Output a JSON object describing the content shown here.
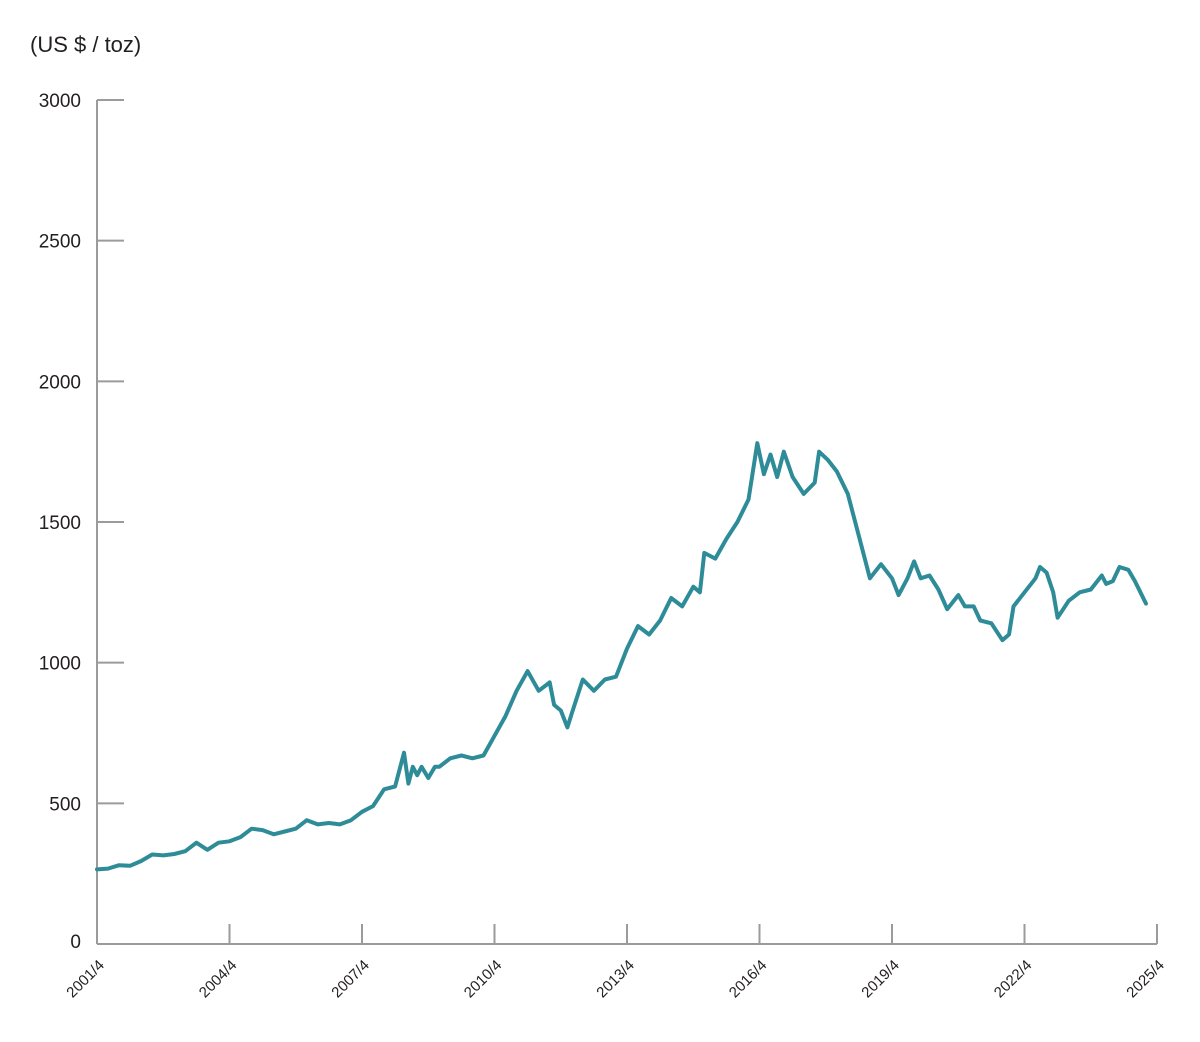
{
  "chart_data": {
    "type": "line",
    "title": "",
    "ylabel": "(US $ / toz)",
    "xlabel": "",
    "ylim": [
      0,
      3000
    ],
    "yticks": [
      0,
      500,
      1000,
      1500,
      2000,
      2500,
      3000
    ],
    "xtick_labels": [
      "2001/4",
      "2004/4",
      "2007/4",
      "2010/4",
      "2013/4",
      "2016/4",
      "2019/4",
      "2022/4",
      "2025/4"
    ],
    "xlim": [
      2001.25,
      2025.25
    ],
    "grid": false,
    "legend": "none",
    "color": "#2e8c99",
    "series": [
      {
        "points": [
          [
            2001.25,
            265
          ],
          [
            2001.5,
            268
          ],
          [
            2001.75,
            280
          ],
          [
            2002.0,
            278
          ],
          [
            2002.25,
            295
          ],
          [
            2002.5,
            318
          ],
          [
            2002.75,
            315
          ],
          [
            2003.0,
            320
          ],
          [
            2003.25,
            330
          ],
          [
            2003.5,
            360
          ],
          [
            2003.75,
            335
          ],
          [
            2004.0,
            360
          ],
          [
            2004.25,
            365
          ],
          [
            2004.5,
            380
          ],
          [
            2004.75,
            410
          ],
          [
            2005.0,
            405
          ],
          [
            2005.25,
            390
          ],
          [
            2005.5,
            400
          ],
          [
            2005.75,
            410
          ],
          [
            2006.0,
            440
          ],
          [
            2006.25,
            425
          ],
          [
            2006.5,
            430
          ],
          [
            2006.75,
            425
          ],
          [
            2007.0,
            440
          ],
          [
            2007.25,
            470
          ],
          [
            2007.5,
            490
          ],
          [
            2007.75,
            550
          ],
          [
            2008.0,
            560
          ],
          [
            2008.2,
            680
          ],
          [
            2008.3,
            570
          ],
          [
            2008.4,
            630
          ],
          [
            2008.5,
            600
          ],
          [
            2008.6,
            630
          ],
          [
            2008.75,
            590
          ],
          [
            2008.9,
            630
          ],
          [
            2009.0,
            630
          ],
          [
            2009.25,
            660
          ],
          [
            2009.5,
            670
          ],
          [
            2009.75,
            660
          ],
          [
            2010.0,
            670
          ],
          [
            2010.25,
            740
          ],
          [
            2010.5,
            810
          ],
          [
            2010.75,
            900
          ],
          [
            2011.0,
            970
          ],
          [
            2011.25,
            900
          ],
          [
            2011.5,
            930
          ],
          [
            2011.6,
            850
          ],
          [
            2011.75,
            830
          ],
          [
            2011.9,
            770
          ],
          [
            2012.0,
            820
          ],
          [
            2012.25,
            940
          ],
          [
            2012.5,
            900
          ],
          [
            2012.75,
            940
          ],
          [
            2013.0,
            950
          ],
          [
            2013.25,
            1050
          ],
          [
            2013.5,
            1130
          ],
          [
            2013.75,
            1100
          ],
          [
            2014.0,
            1150
          ],
          [
            2014.25,
            1230
          ],
          [
            2014.5,
            1200
          ],
          [
            2014.75,
            1270
          ],
          [
            2014.9,
            1250
          ],
          [
            2015.0,
            1390
          ],
          [
            2015.25,
            1370
          ],
          [
            2015.5,
            1440
          ],
          [
            2015.75,
            1500
          ],
          [
            2016.0,
            1580
          ],
          [
            2016.2,
            1780
          ],
          [
            2016.35,
            1670
          ],
          [
            2016.5,
            1740
          ],
          [
            2016.65,
            1660
          ],
          [
            2016.8,
            1750
          ],
          [
            2017.0,
            1660
          ],
          [
            2017.25,
            1600
          ],
          [
            2017.5,
            1640
          ],
          [
            2017.6,
            1750
          ],
          [
            2017.8,
            1720
          ],
          [
            2018.0,
            1680
          ],
          [
            2018.25,
            1600
          ],
          [
            2018.5,
            1450
          ],
          [
            2018.75,
            1300
          ],
          [
            2019.0,
            1350
          ],
          [
            2019.25,
            1300
          ],
          [
            2019.4,
            1240
          ],
          [
            2019.6,
            1300
          ],
          [
            2019.75,
            1360
          ],
          [
            2019.9,
            1300
          ],
          [
            2020.1,
            1310
          ],
          [
            2020.3,
            1260
          ],
          [
            2020.5,
            1190
          ],
          [
            2020.75,
            1240
          ],
          [
            2020.9,
            1200
          ],
          [
            2021.1,
            1200
          ],
          [
            2021.25,
            1150
          ],
          [
            2021.5,
            1140
          ],
          [
            2021.75,
            1080
          ],
          [
            2021.9,
            1100
          ],
          [
            2022.0,
            1200
          ],
          [
            2022.25,
            1250
          ],
          [
            2022.5,
            1300
          ],
          [
            2022.6,
            1340
          ],
          [
            2022.75,
            1320
          ],
          [
            2022.9,
            1250
          ],
          [
            2023.0,
            1160
          ],
          [
            2023.25,
            1220
          ],
          [
            2023.5,
            1250
          ],
          [
            2023.75,
            1260
          ],
          [
            2024.0,
            1310
          ],
          [
            2024.1,
            1280
          ],
          [
            2024.25,
            1290
          ],
          [
            2024.4,
            1340
          ],
          [
            2024.6,
            1330
          ],
          [
            2024.75,
            1290
          ],
          [
            2025.0,
            1210
          ]
        ]
      }
    ]
  }
}
